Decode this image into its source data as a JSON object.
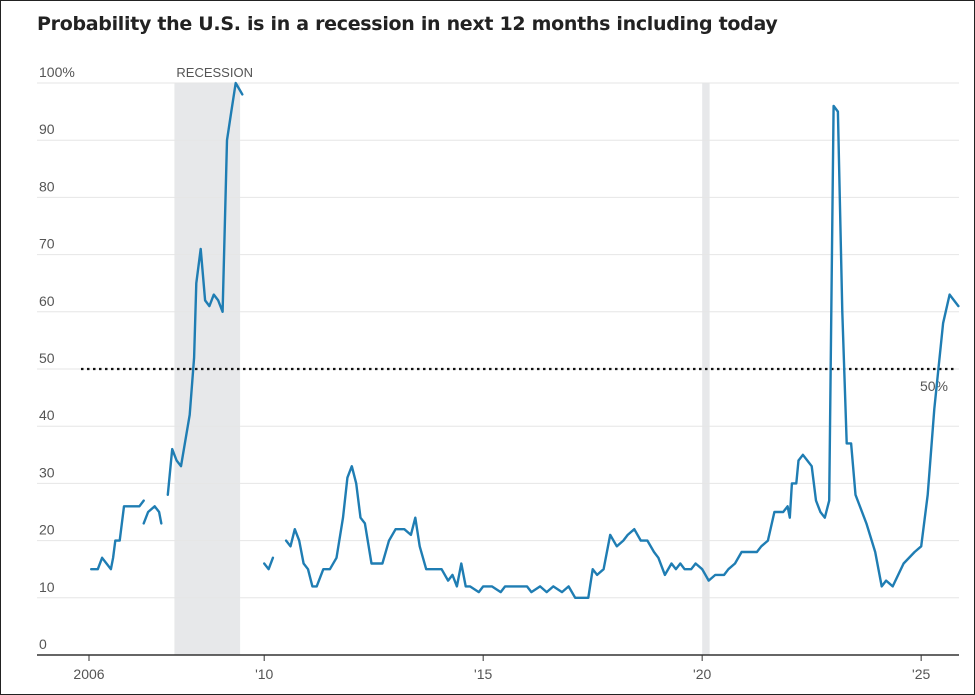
{
  "title": "Probability the U.S. is in a recession in next 12 months including today",
  "chart_data": {
    "type": "line",
    "title": "Probability the U.S. is in a recession in next 12 months including today",
    "xlabel": "",
    "ylabel": "",
    "ylim": [
      0,
      100
    ],
    "xlim": [
      2006.0,
      2025.75
    ],
    "y_ticks": [
      {
        "value": 0,
        "label": "0"
      },
      {
        "value": 10,
        "label": "10"
      },
      {
        "value": 20,
        "label": "20"
      },
      {
        "value": 30,
        "label": "30"
      },
      {
        "value": 40,
        "label": "40"
      },
      {
        "value": 50,
        "label": "50"
      },
      {
        "value": 60,
        "label": "60"
      },
      {
        "value": 70,
        "label": "70"
      },
      {
        "value": 80,
        "label": "80"
      },
      {
        "value": 90,
        "label": "90"
      },
      {
        "value": 100,
        "label": "100%"
      }
    ],
    "x_ticks": [
      {
        "value": 2006,
        "label": "2006"
      },
      {
        "value": 2010,
        "label": "'10"
      },
      {
        "value": 2015,
        "label": "'15"
      },
      {
        "value": 2020,
        "label": "'20"
      },
      {
        "value": 2025,
        "label": "'25"
      }
    ],
    "grid": "horizontal",
    "line_color": "#1f7db3",
    "threshold": {
      "value": 50,
      "label": "50%"
    },
    "recession_label": "RECESSION",
    "recessions": [
      {
        "start": 2007.95,
        "end": 2009.45
      },
      {
        "start": 2020.0,
        "end": 2020.17
      }
    ],
    "segments": [
      [
        [
          2006.05,
          15
        ],
        [
          2006.2,
          15
        ],
        [
          2006.3,
          17
        ],
        [
          2006.4,
          16
        ],
        [
          2006.5,
          15
        ],
        [
          2006.55,
          17
        ],
        [
          2006.6,
          20
        ],
        [
          2006.7,
          20
        ],
        [
          2006.8,
          26
        ],
        [
          2007.0,
          26
        ],
        [
          2007.15,
          26
        ],
        [
          2007.25,
          27
        ]
      ],
      [
        [
          2007.25,
          23
        ],
        [
          2007.35,
          25
        ],
        [
          2007.5,
          26
        ],
        [
          2007.6,
          25
        ],
        [
          2007.65,
          23
        ]
      ],
      [
        [
          2007.8,
          28
        ],
        [
          2007.9,
          36
        ],
        [
          2008.0,
          34
        ],
        [
          2008.1,
          33
        ],
        [
          2008.3,
          42
        ],
        [
          2008.4,
          52
        ],
        [
          2008.45,
          65
        ],
        [
          2008.55,
          71
        ],
        [
          2008.65,
          62
        ],
        [
          2008.75,
          61
        ],
        [
          2008.85,
          63
        ],
        [
          2008.95,
          62
        ],
        [
          2009.05,
          60
        ],
        [
          2009.15,
          90
        ],
        [
          2009.25,
          95
        ],
        [
          2009.35,
          100
        ],
        [
          2009.5,
          98
        ]
      ]
    ],
    "segments_2": [
      [
        [
          2010.0,
          16
        ],
        [
          2010.1,
          15
        ],
        [
          2010.2,
          17
        ]
      ],
      [
        [
          2010.5,
          20
        ],
        [
          2010.6,
          19
        ],
        [
          2010.7,
          22
        ],
        [
          2010.8,
          20
        ],
        [
          2010.9,
          16
        ],
        [
          2011.0,
          15
        ],
        [
          2011.1,
          12
        ],
        [
          2011.2,
          12
        ],
        [
          2011.35,
          15
        ],
        [
          2011.5,
          15
        ],
        [
          2011.65,
          17
        ],
        [
          2011.8,
          24
        ],
        [
          2011.9,
          31
        ],
        [
          2012.0,
          33
        ],
        [
          2012.1,
          30
        ],
        [
          2012.2,
          24
        ],
        [
          2012.3,
          23
        ],
        [
          2012.45,
          16
        ],
        [
          2012.7,
          16
        ],
        [
          2012.85,
          20
        ],
        [
          2013.0,
          22
        ],
        [
          2013.2,
          22
        ],
        [
          2013.35,
          21
        ],
        [
          2013.45,
          24
        ],
        [
          2013.55,
          19
        ],
        [
          2013.7,
          15
        ],
        [
          2013.85,
          15
        ],
        [
          2014.05,
          15
        ],
        [
          2014.2,
          13
        ],
        [
          2014.3,
          14
        ],
        [
          2014.4,
          12
        ],
        [
          2014.5,
          16
        ],
        [
          2014.6,
          12
        ],
        [
          2014.7,
          12
        ],
        [
          2014.9,
          11
        ],
        [
          2015.0,
          12
        ],
        [
          2015.2,
          12
        ],
        [
          2015.4,
          11
        ],
        [
          2015.5,
          12
        ],
        [
          2016.0,
          12
        ],
        [
          2016.1,
          11
        ],
        [
          2016.3,
          12
        ],
        [
          2016.45,
          11
        ],
        [
          2016.6,
          12
        ],
        [
          2016.8,
          11
        ],
        [
          2016.95,
          12
        ],
        [
          2017.1,
          10
        ],
        [
          2017.4,
          10
        ],
        [
          2017.5,
          15
        ],
        [
          2017.6,
          14
        ],
        [
          2017.75,
          15
        ],
        [
          2017.9,
          21
        ],
        [
          2018.05,
          19
        ],
        [
          2018.2,
          20
        ],
        [
          2018.3,
          21
        ],
        [
          2018.45,
          22
        ],
        [
          2018.6,
          20
        ],
        [
          2018.75,
          20
        ],
        [
          2018.9,
          18
        ],
        [
          2019.0,
          17
        ],
        [
          2019.15,
          14
        ],
        [
          2019.3,
          16
        ],
        [
          2019.4,
          15
        ],
        [
          2019.5,
          16
        ],
        [
          2019.6,
          15
        ],
        [
          2019.75,
          15
        ],
        [
          2019.85,
          16
        ],
        [
          2020.0,
          15
        ],
        [
          2020.15,
          13
        ],
        [
          2020.3,
          14
        ],
        [
          2020.5,
          14
        ],
        [
          2020.6,
          15
        ],
        [
          2020.75,
          16
        ],
        [
          2020.9,
          18
        ],
        [
          2021.05,
          18
        ],
        [
          2021.25,
          18
        ],
        [
          2021.35,
          19
        ],
        [
          2021.5,
          20
        ],
        [
          2021.65,
          25
        ],
        [
          2021.85,
          25
        ],
        [
          2021.95,
          26
        ],
        [
          2022.0,
          24
        ],
        [
          2022.05,
          30
        ],
        [
          2022.15,
          30
        ],
        [
          2022.2,
          34
        ],
        [
          2022.3,
          35
        ],
        [
          2022.4,
          34
        ],
        [
          2022.5,
          33
        ],
        [
          2022.6,
          27
        ],
        [
          2022.7,
          25
        ],
        [
          2022.8,
          24
        ],
        [
          2022.9,
          27
        ],
        [
          2023.0,
          96
        ],
        [
          2023.1,
          95
        ],
        [
          2023.2,
          60
        ],
        [
          2023.3,
          37
        ],
        [
          2023.4,
          37
        ],
        [
          2023.5,
          28
        ],
        [
          2023.75,
          23
        ],
        [
          2023.95,
          18
        ],
        [
          2024.1,
          12
        ],
        [
          2024.2,
          13
        ],
        [
          2024.35,
          12
        ],
        [
          2024.6,
          16
        ],
        [
          2024.85,
          18
        ],
        [
          2025.0,
          19
        ],
        [
          2025.15,
          28
        ],
        [
          2025.3,
          43
        ],
        [
          2025.5,
          58
        ],
        [
          2025.65,
          63
        ],
        [
          2025.75,
          62
        ],
        [
          2025.85,
          61
        ]
      ]
    ]
  }
}
